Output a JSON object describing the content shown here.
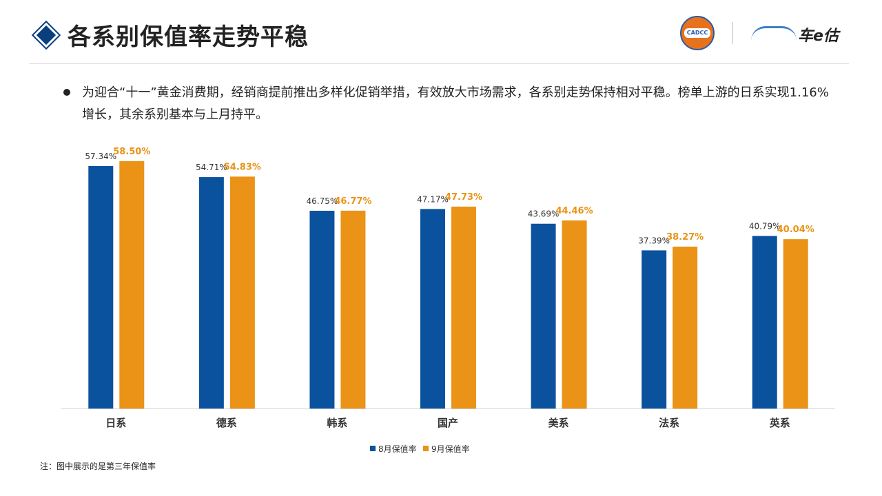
{
  "header": {
    "title": "各系别保值率走势平稳",
    "logo_left": "CADCC",
    "logo_right": "车e估"
  },
  "summary": "为迎合“十一”黄金消费期，经销商提前推出多样化促销举措，有效放大市场需求，各系别走势保持相对平稳。榜单上游的日系实现1.16%增长，其余系别基本与上月持平。",
  "note": "注：图中展示的是第三年保值率",
  "colors": {
    "aug": "#0b529e",
    "sep": "#ea9317",
    "accent": "#0a3f7d"
  },
  "chart_data": {
    "type": "bar",
    "categories": [
      "日系",
      "德系",
      "韩系",
      "国产",
      "美系",
      "法系",
      "英系"
    ],
    "series": [
      {
        "name": "8月保值率",
        "values": [
          57.34,
          54.71,
          46.75,
          47.17,
          43.69,
          37.39,
          40.79
        ],
        "labels": [
          "57.34%",
          "54.71%",
          "46.75%",
          "47.17%",
          "43.69%",
          "37.39%",
          "40.79%"
        ]
      },
      {
        "name": "9月保值率",
        "values": [
          58.5,
          54.83,
          46.77,
          47.73,
          44.46,
          38.27,
          40.04
        ],
        "labels": [
          "58.50%",
          "54.83%",
          "46.77%",
          "47.73%",
          "44.46%",
          "38.27%",
          "40.04%"
        ]
      }
    ],
    "unit": "%",
    "ylim": [
      0,
      60
    ],
    "grid": false,
    "legend": "bottom"
  }
}
